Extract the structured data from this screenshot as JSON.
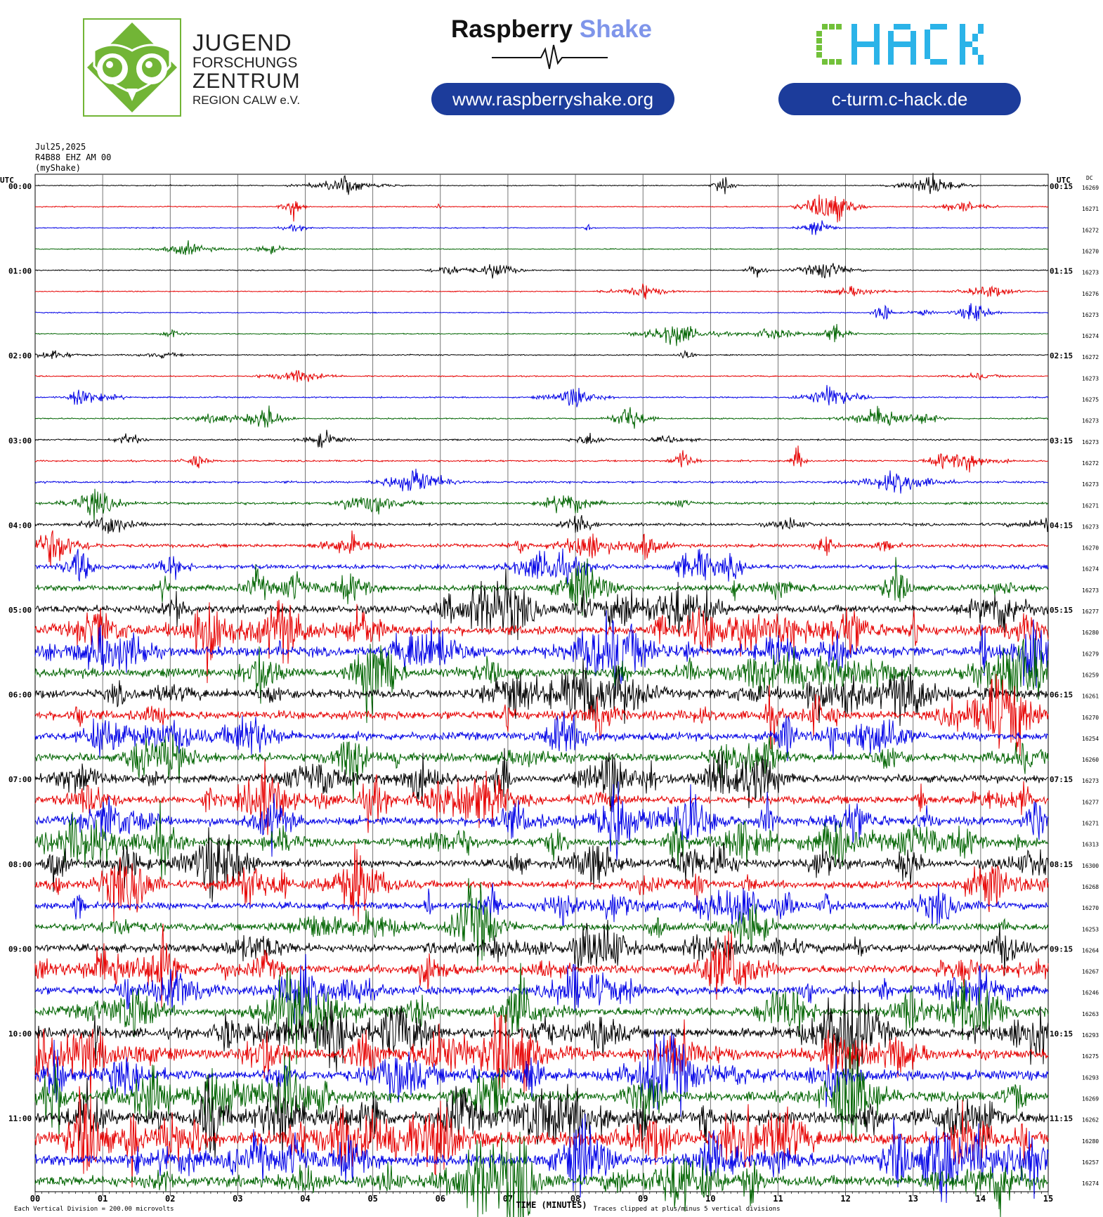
{
  "logos": {
    "jfz": {
      "line1": "JUGEND",
      "line2": "FORSCHUNGS",
      "line3": "ZENTRUM",
      "line4": "REGION CALW e.V.",
      "color": "#72b536"
    },
    "raspberry_shake": {
      "part1": "Raspberry",
      "part2": "Shake",
      "url": "www.raspberryshake.org",
      "accent": "#7f95ea"
    },
    "chack": {
      "text": "CHACK",
      "url": "c-turm.c-hack.de",
      "green": "#72c13a",
      "cyan": "#2bb3e8"
    },
    "pill_color": "#1c3c9b"
  },
  "header": {
    "date": "Jul25,2025",
    "station": "R4B88 EHZ AM 00",
    "network": "(myShake)",
    "left_unit": "UTC",
    "right_unit": "UTC",
    "dc_label": "DC"
  },
  "footer": {
    "xlabel": "TIME (MINUTES)",
    "vertical_division": "Each Vertical Division =  200.00 microvolts",
    "clip_note": "Traces clipped at plus/minus 5 vertical divisions"
  },
  "chart_data": {
    "type": "line",
    "title": "Jul25,2025 R4B88 EHZ AM 00 (myShake)",
    "xlabel": "TIME (MINUTES)",
    "ylabel": "UTC",
    "xlim": [
      0,
      15
    ],
    "x_ticks": [
      "00",
      "01",
      "02",
      "03",
      "04",
      "05",
      "06",
      "07",
      "08",
      "09",
      "10",
      "11",
      "12",
      "13",
      "14",
      "15"
    ],
    "left_labels": [
      "00:00",
      "01:00",
      "02:00",
      "03:00",
      "04:00",
      "05:00",
      "06:00",
      "07:00",
      "08:00",
      "09:00",
      "10:00",
      "11:00"
    ],
    "right_labels": [
      "00:15",
      "01:15",
      "02:15",
      "03:15",
      "04:15",
      "05:15",
      "06:15",
      "07:15",
      "08:15",
      "09:15",
      "10:15",
      "11:15"
    ],
    "dc_offsets": [
      "16269",
      "16271",
      "16272",
      "16270",
      "16273",
      "16276",
      "16273",
      "16274",
      "16272",
      "16273",
      "16275",
      "16273",
      "16273",
      "16272",
      "16273",
      "16271",
      "16273",
      "16270",
      "16274",
      "16273",
      "16277",
      "16280",
      "16279",
      "16259",
      "16261",
      "16270",
      "16254",
      "16260",
      "16273",
      "16277",
      "16271",
      "16313",
      "16300",
      "16268",
      "16270",
      "16253",
      "16264",
      "16267",
      "16246",
      "16263",
      "16293",
      "16275",
      "16293",
      "16269",
      "16262",
      "16280",
      "16257",
      "16274"
    ],
    "trace_colors": [
      "#000000",
      "#e60000",
      "#0000e6",
      "#006400"
    ],
    "series_count": 48,
    "minutes_per_trace": 15,
    "units": "microvolts",
    "vertical_division_microvolts": 200,
    "clip_divisions": 5,
    "noise_level": [
      0.3,
      0.3,
      0.3,
      0.3,
      0.3,
      0.3,
      0.3,
      0.3,
      0.35,
      0.35,
      0.4,
      0.4,
      0.45,
      0.5,
      0.6,
      0.7,
      0.8,
      1.0,
      1.3,
      1.8,
      2.3,
      2.6,
      2.8,
      2.6,
      2.6,
      2.4,
      2.4,
      2.3,
      2.2,
      2.3,
      2.4,
      2.2,
      2.2,
      2.3,
      2.0,
      2.1,
      2.2,
      2.5,
      2.4,
      2.6,
      3.0,
      2.8,
      2.9,
      3.0,
      3.6,
      4.0,
      3.4,
      3.2
    ]
  }
}
